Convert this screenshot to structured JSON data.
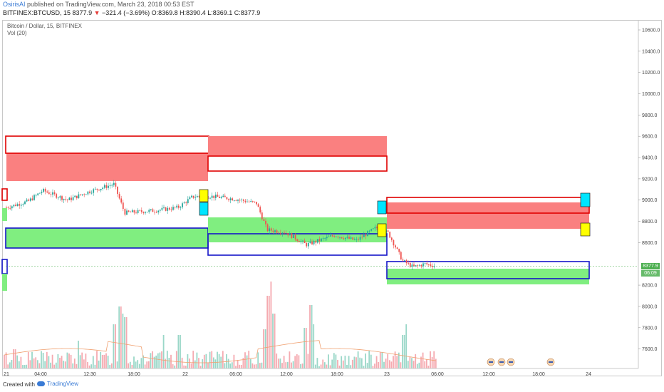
{
  "header": {
    "author": "OsirisAI",
    "published_text": "published on TradingView.com, March 23, 2018 00:53 EST",
    "symbol": "BITFINEX:BTCUSD, 15",
    "last_price": "8377.9",
    "change_arrow": "▼",
    "change_text": "−321.4 (−3.69%)",
    "o_label": "O:",
    "o_value": "8369.8",
    "h_label": "H:",
    "h_value": "8390.4",
    "l_label": "L:",
    "l_value": "8369.1",
    "c_label": "C:",
    "c_value": "8377.9"
  },
  "legend": {
    "instrument": "Bitcoin / Dollar, 15, BITFINEX",
    "volume": "Vol (20)"
  },
  "price_axis": {
    "ticks": [
      "10600.0",
      "10400.0",
      "10200.0",
      "10000.0",
      "9800.0",
      "9600.0",
      "9400.0",
      "9200.0",
      "9000.0",
      "8800.0",
      "8600.0",
      "8200.0",
      "8000.0",
      "7800.0",
      "7600.0"
    ],
    "last_price_tag": "8377.9",
    "countdown_tag": "06:09"
  },
  "time_axis": {
    "ticks": [
      "21",
      "04:00",
      "12:30",
      "18:00",
      "22",
      "06:00",
      "12:00",
      "18:00",
      "23",
      "06:00",
      "12:00",
      "18:00",
      "24"
    ]
  },
  "colors": {
    "up": "#26a69a",
    "down": "#ef5350",
    "supply_fill": "#fa8080",
    "demand_fill": "#80ee80",
    "supply_border": "#e00000",
    "demand_border": "#1515c8",
    "cyan_marker": "#00e5ff",
    "yellow_marker": "#ffff00"
  },
  "chart_data": {
    "type": "candlestick",
    "symbol": "BTCUSD",
    "exchange": "BITFINEX",
    "interval": "15",
    "ylim": [
      7400,
      10700
    ],
    "y_ticks": [
      10600,
      10400,
      10200,
      10000,
      9800,
      9600,
      9400,
      9200,
      9000,
      8800,
      8600,
      8200,
      8000,
      7800,
      7600
    ],
    "x_ticks": [
      "21",
      "04:00",
      "12:30",
      "18:00",
      "22",
      "06:00",
      "12:00",
      "18:00",
      "23",
      "06:00",
      "12:00",
      "18:00",
      "24"
    ],
    "last_price": 8377.9
  },
  "footer": {
    "created_with": "Created with",
    "brand": "TradingView"
  }
}
